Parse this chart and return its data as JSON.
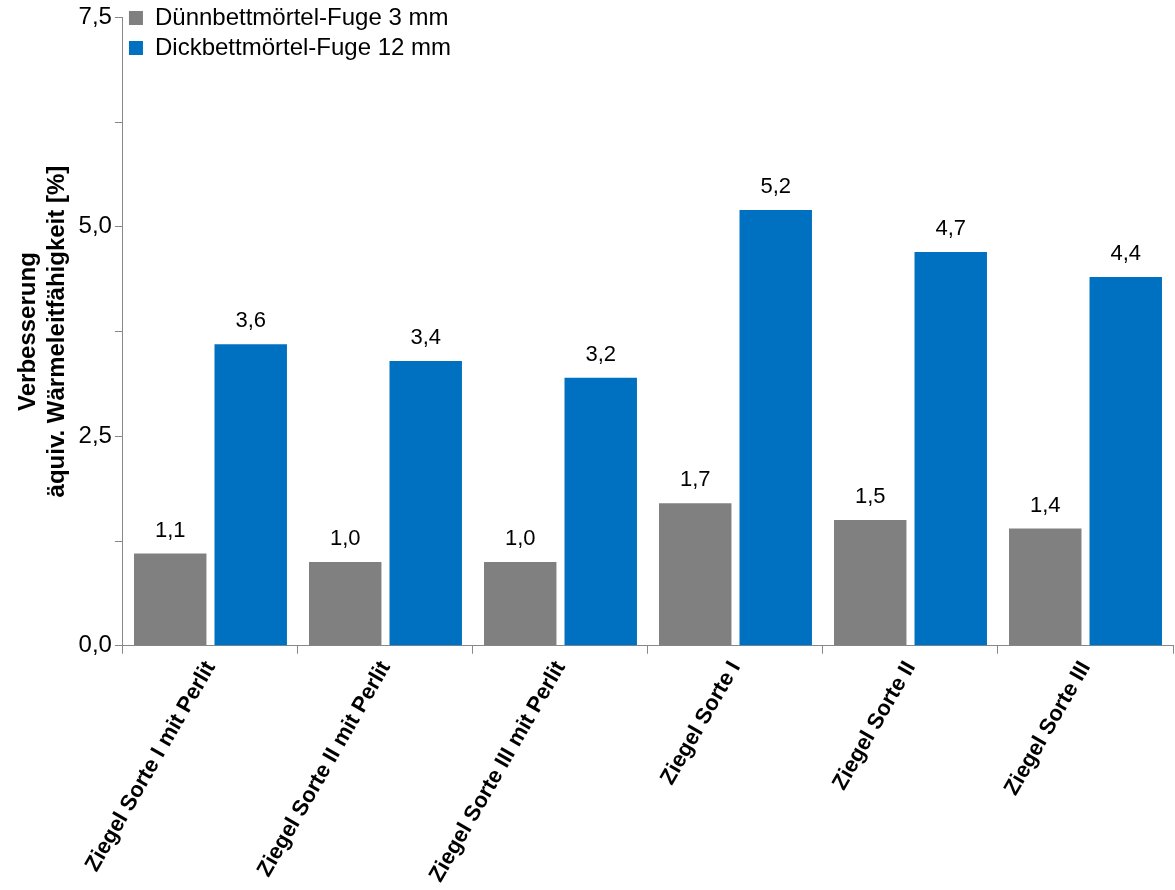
{
  "chart_data": {
    "type": "bar",
    "ylabel": "Verbesserung\näquiv. Wärmeleitfähigkeit [%]",
    "categories": [
      "Ziegel Sorte I mit Perlit",
      "Ziegel Sorte II mit Perlit",
      "Ziegel Sorte III mit Perlit",
      "Ziegel Sorte I",
      "Ziegel Sorte II",
      "Ziegel Sorte III"
    ],
    "series": [
      {
        "name": "Dünnbettmörtel-Fuge 3 mm",
        "color": "#808080",
        "values": [
          1.1,
          1.0,
          1.0,
          1.7,
          1.5,
          1.4
        ],
        "value_labels": [
          "1,1",
          "1,0",
          "1,0",
          "1,7",
          "1,5",
          "1,4"
        ]
      },
      {
        "name": "Dickbettmörtel-Fuge 12 mm",
        "color": "#0070c0",
        "values": [
          3.6,
          3.4,
          3.2,
          5.2,
          4.7,
          4.4
        ],
        "value_labels": [
          "3,6",
          "3,4",
          "3,2",
          "5,2",
          "4,7",
          "4,4"
        ]
      }
    ],
    "ylim": [
      0,
      7.5
    ],
    "yticks": [
      {
        "value": 0,
        "label": "0,0"
      },
      {
        "value": 1.25,
        "label": null
      },
      {
        "value": 2.5,
        "label": "2,5"
      },
      {
        "value": 3.75,
        "label": null
      },
      {
        "value": 5,
        "label": "5,0"
      },
      {
        "value": 6.25,
        "label": null
      },
      {
        "value": 7.5,
        "label": "7,5"
      }
    ],
    "grid": false,
    "legend": "top left"
  }
}
